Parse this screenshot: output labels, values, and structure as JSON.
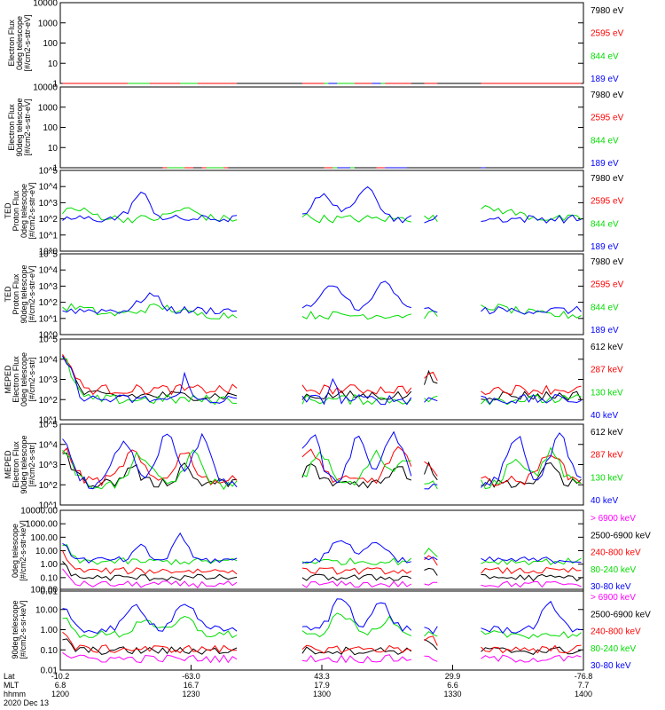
{
  "figure": {
    "date": "2020 Dec 13"
  },
  "colors": {
    "black": "#000000",
    "red": "#ff0000",
    "green": "#00dd00",
    "blue": "#0000ff",
    "magenta": "#ff00ff"
  },
  "chart_data": [
    {
      "type": "line",
      "title": "",
      "ylabel_lines": [
        "Electron Flux",
        "0deg telescope",
        "[#/cm2-s-str-eV]"
      ],
      "yscale": "log",
      "ylim": [
        1,
        10000
      ],
      "ytick_labels": [
        "1",
        "10",
        "100",
        "1000",
        "10000"
      ],
      "series": [
        {
          "name": "7980 eV",
          "color": "#000000",
          "base_log": 1.0,
          "bursts": [
            [
              4,
              0.9,
              3
            ],
            [
              60,
              0.9,
              3
            ],
            [
              102,
              1.3,
              2
            ],
            [
              118,
              1.2,
              2
            ]
          ]
        },
        {
          "name": "2595 eV",
          "color": "#ff0000",
          "base_log": 1.3,
          "bursts": [
            [
              18,
              1.9,
              3
            ],
            [
              29,
              1.6,
              3
            ],
            [
              63,
              1.8,
              3
            ],
            [
              72,
              1.7,
              3
            ],
            [
              118,
              1.3,
              2
            ]
          ]
        },
        {
          "name": "844 eV",
          "color": "#00dd00",
          "base_log": 1.0,
          "bursts": [
            [
              18,
              0.9,
              3
            ],
            [
              29,
              0.8,
              3
            ],
            [
              63,
              1.0,
              3
            ],
            [
              72,
              0.7,
              3
            ]
          ]
        },
        {
          "name": "189 eV",
          "color": "#0000ff",
          "base_log": 0.9,
          "bursts": [
            [
              63,
              0.6,
              3
            ],
            [
              72,
              0.5,
              3
            ]
          ]
        }
      ]
    },
    {
      "type": "line",
      "title": "",
      "ylabel_lines": [
        "Electron Flux",
        "90deg telescope",
        "[#/cm2-s-str-eV]"
      ],
      "yscale": "log",
      "ylim": [
        1,
        10000
      ],
      "ytick_labels": [
        "1",
        "10",
        "100",
        "1000",
        "10000"
      ],
      "series": [
        {
          "name": "7980 eV",
          "color": "#000000",
          "base_log": 0.5,
          "bursts": [
            [
              26,
              1.0,
              3
            ],
            [
              64,
              1.0,
              3
            ],
            [
              74,
              1.0,
              3
            ]
          ]
        },
        {
          "name": "2595 eV",
          "color": "#ff0000",
          "base_log": 0.9,
          "bursts": [
            [
              26,
              1.8,
              3
            ],
            [
              35,
              1.4,
              3
            ],
            [
              64,
              1.7,
              3
            ],
            [
              75,
              1.9,
              3
            ]
          ]
        },
        {
          "name": "844 eV",
          "color": "#00dd00",
          "base_log": 0.9,
          "bursts": [
            [
              26,
              1.3,
              3
            ],
            [
              35,
              1.0,
              3
            ],
            [
              64,
              1.1,
              3
            ],
            [
              76,
              2.2,
              2
            ]
          ]
        },
        {
          "name": "189 eV",
          "color": "#0000ff",
          "base_log": 0.8,
          "bursts": [
            [
              64,
              0.6,
              3
            ],
            [
              76,
              0.9,
              3
            ],
            [
              97,
              0.5,
              3
            ]
          ]
        }
      ]
    },
    {
      "type": "line",
      "title": "",
      "ylabel_lines": [
        "TED",
        "Proton Flux",
        "0deg telescope",
        "[#/cm2-s-str-eV]"
      ],
      "yscale": "log",
      "ylim": [
        0,
        5
      ],
      "ytick_labels": [
        "10^0",
        "10^1",
        "10^2",
        "10^3",
        "10^4",
        "10^5"
      ],
      "series": [
        {
          "name": "7980 eV",
          "color": "#000000",
          "base_log": 0.0,
          "bursts": []
        },
        {
          "name": "2595 eV",
          "color": "#ff0000",
          "base_log": 0.0,
          "bursts": []
        },
        {
          "name": "844 eV",
          "color": "#00dd00",
          "base_log": 2.0,
          "bursts": [
            [
              2,
              0.6,
              6
            ],
            [
              28,
              0.6,
              4
            ],
            [
              50,
              0.5,
              5
            ],
            [
              98,
              0.6,
              8
            ]
          ]
        },
        {
          "name": "189 eV",
          "color": "#0000ff",
          "base_log": 2.0,
          "bursts": [
            [
              18,
              1.5,
              3
            ],
            [
              60,
              1.4,
              4
            ],
            [
              70,
              2.2,
              3
            ]
          ]
        }
      ]
    },
    {
      "type": "line",
      "title": "",
      "ylabel_lines": [
        "TED",
        "Proton Flux",
        "90deg telescope",
        "[#/cm2-s-str-eV]"
      ],
      "yscale": "log",
      "ylim": [
        0,
        5
      ],
      "ytick_labels": [
        "10^0",
        "10^1",
        "10^2",
        "10^3",
        "10^4",
        "10^5"
      ],
      "series": [
        {
          "name": "7980 eV",
          "color": "#000000",
          "base_log": 0.0,
          "bursts": []
        },
        {
          "name": "2595 eV",
          "color": "#ff0000",
          "base_log": 0.0,
          "bursts": []
        },
        {
          "name": "844 eV",
          "color": "#00dd00",
          "base_log": 1.2,
          "bursts": [
            [
              2,
              0.5,
              6
            ],
            [
              22,
              0.5,
              6
            ],
            [
              98,
              0.5,
              8
            ]
          ]
        },
        {
          "name": "189 eV",
          "color": "#0000ff",
          "base_log": 1.5,
          "bursts": [
            [
              20,
              1.0,
              3
            ],
            [
              62,
              1.4,
              4
            ],
            [
              74,
              1.8,
              3
            ]
          ]
        }
      ]
    },
    {
      "type": "line",
      "title": "",
      "ylabel_lines": [
        "MEPED",
        "Electron Flux",
        "0deg telescope",
        "[#/cm2-s-str]"
      ],
      "yscale": "log",
      "ylim": [
        1,
        5
      ],
      "ytick_labels": [
        "10^1",
        "10^2",
        "10^3",
        "10^4",
        "10^5"
      ],
      "series": [
        {
          "name": "612 keV",
          "color": "#000000",
          "base_log": 2.2,
          "bursts": [
            [
              0,
              2.0,
              3
            ],
            [
              84,
              1.0,
              2
            ]
          ]
        },
        {
          "name": "287 keV",
          "color": "#ff0000",
          "base_log": 2.5,
          "bursts": [
            [
              0,
              1.7,
              3
            ],
            [
              84,
              0.8,
              2
            ]
          ]
        },
        {
          "name": "130 keV",
          "color": "#00dd00",
          "base_log": 2.0,
          "bursts": [
            [
              0,
              2.0,
              3
            ]
          ]
        },
        {
          "name": "40 keV",
          "color": "#0000ff",
          "base_log": 2.0,
          "bursts": [
            [
              0,
              2.1,
              3
            ],
            [
              28,
              1.5,
              1
            ],
            [
              62,
              1.1,
              1
            ]
          ]
        }
      ]
    },
    {
      "type": "line",
      "title": "",
      "ylabel_lines": [
        "MEPED",
        "Electron Flux",
        "90deg telescope",
        "[#/cm2-s-str]"
      ],
      "yscale": "log",
      "ylim": [
        1,
        5
      ],
      "ytick_labels": [
        "10^1",
        "10^2",
        "10^3",
        "10^4",
        "10^5"
      ],
      "series": [
        {
          "name": "612 keV",
          "color": "#000000",
          "base_log": 2.1,
          "bursts": [
            [
              0,
              1.4,
              3
            ],
            [
              16,
              0.9,
              2
            ],
            [
              28,
              0.9,
              2
            ],
            [
              57,
              0.9,
              2
            ],
            [
              77,
              1.0,
              2
            ],
            [
              84,
              0.8,
              2
            ],
            [
              112,
              1.0,
              2
            ]
          ]
        },
        {
          "name": "287 keV",
          "color": "#ff0000",
          "base_log": 2.2,
          "bursts": [
            [
              0,
              1.6,
              3
            ],
            [
              16,
              1.4,
              3
            ],
            [
              28,
              1.4,
              3
            ],
            [
              57,
              1.5,
              3
            ],
            [
              77,
              1.6,
              3
            ],
            [
              84,
              1.0,
              2
            ],
            [
              112,
              1.5,
              3
            ]
          ]
        },
        {
          "name": "130 keV",
          "color": "#00dd00",
          "base_log": 2.0,
          "bursts": [
            [
              0,
              1.8,
              3
            ],
            [
              18,
              1.5,
              3
            ],
            [
              30,
              1.5,
              3
            ],
            [
              59,
              1.6,
              3
            ],
            [
              72,
              1.5,
              3
            ],
            [
              79,
              1.4,
              3
            ],
            [
              104,
              1.4,
              3
            ],
            [
              112,
              1.6,
              3
            ]
          ]
        },
        {
          "name": "40 keV",
          "color": "#0000ff",
          "base_log": 2.0,
          "bursts": [
            [
              0,
              2.3,
              3
            ],
            [
              14,
              2.2,
              3
            ],
            [
              24,
              2.4,
              3
            ],
            [
              32,
              2.3,
              3
            ],
            [
              57,
              2.5,
              3
            ],
            [
              68,
              2.3,
              3
            ],
            [
              76,
              2.5,
              3
            ],
            [
              104,
              2.4,
              3
            ],
            [
              114,
              2.5,
              3
            ]
          ]
        }
      ]
    },
    {
      "type": "line",
      "title": "",
      "ylabel_lines": [
        "0deg telescope",
        "[#/cm2-s-str-keV]"
      ],
      "yscale": "log",
      "ylim": [
        -2,
        4
      ],
      "ytick_labels": [
        "0.01",
        "0.10",
        "1.00",
        "10.00",
        "100.00",
        "1000.00",
        "10000.00"
      ],
      "series": [
        {
          "name": "> 6900 keV",
          "color": "#ff00ff",
          "base_log": -1.5,
          "bursts": [
            [
              0,
              1.0,
              2
            ]
          ]
        },
        {
          "name": "2500-6900 keV",
          "color": "#000000",
          "base_log": -1.0,
          "bursts": [
            [
              0,
              1.0,
              2
            ],
            [
              84,
              0.7,
              2
            ]
          ]
        },
        {
          "name": "240-800 keV",
          "color": "#ff0000",
          "base_log": -0.5,
          "bursts": [
            [
              0,
              1.3,
              2
            ],
            [
              84,
              0.9,
              2
            ]
          ]
        },
        {
          "name": "80-240 keV",
          "color": "#00dd00",
          "base_log": 0.2,
          "bursts": [
            [
              0,
              1.3,
              2
            ],
            [
              84,
              1.0,
              2
            ]
          ]
        },
        {
          "name": "30-80 keV",
          "color": "#0000ff",
          "base_log": 0.3,
          "bursts": [
            [
              0,
              1.4,
              2
            ],
            [
              18,
              1.0,
              2
            ],
            [
              27,
              2.0,
              2
            ],
            [
              64,
              1.6,
              3
            ],
            [
              72,
              1.4,
              3
            ]
          ]
        }
      ]
    },
    {
      "type": "line",
      "title": "",
      "ylabel_lines": [
        "90deg telescope",
        "[#/cm2-s-sr-keV]"
      ],
      "yscale": "log",
      "ylim": [
        -2,
        3
      ],
      "ytick_labels": [
        "0.01",
        "0.10",
        "1.00",
        "10.00",
        "100.00"
      ],
      "series": [
        {
          "name": "> 6900 keV",
          "color": "#ff00ff",
          "base_log": -1.3,
          "bursts": [
            [
              0,
              0.4,
              2
            ]
          ]
        },
        {
          "name": "2500-6900 keV",
          "color": "#000000",
          "base_log": -0.8,
          "bursts": [
            [
              0,
              0.8,
              2
            ],
            [
              84,
              0.6,
              2
            ]
          ]
        },
        {
          "name": "240-800 keV",
          "color": "#ff0000",
          "base_log": -0.7,
          "bursts": [
            [
              0,
              1.0,
              2
            ],
            [
              84,
              0.8,
              2
            ]
          ]
        },
        {
          "name": "80-240 keV",
          "color": "#00dd00",
          "base_log": 0.2,
          "bursts": [
            [
              0,
              1.1,
              2
            ],
            [
              19,
              1.0,
              3
            ],
            [
              28,
              1.0,
              3
            ],
            [
              64,
              1.3,
              3
            ],
            [
              75,
              1.0,
              3
            ]
          ]
        },
        {
          "name": "30-80 keV",
          "color": "#0000ff",
          "base_log": 0.5,
          "bursts": [
            [
              0,
              1.3,
              2
            ],
            [
              17,
              1.5,
              3
            ],
            [
              28,
              1.7,
              3
            ],
            [
              64,
              2.0,
              3
            ],
            [
              73,
              1.6,
              3
            ],
            [
              112,
              1.5,
              3
            ]
          ]
        }
      ]
    }
  ],
  "x_axis": {
    "tick_count": 5,
    "rows": [
      {
        "label": "Lat",
        "values": [
          "-10.2",
          "-63.0",
          "43.3",
          "29.9",
          "-76.8"
        ]
      },
      {
        "label": "MLT",
        "values": [
          "6.8",
          "16.7",
          "17.9",
          "6.6",
          "7.7"
        ]
      },
      {
        "label": "hhmm",
        "values": [
          "1200",
          "1230",
          "1300",
          "1330",
          "1400"
        ]
      }
    ]
  }
}
